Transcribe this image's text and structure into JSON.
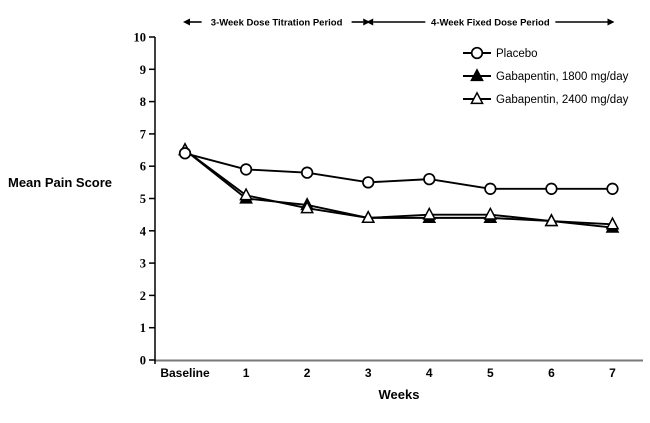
{
  "chart_data": {
    "type": "line",
    "title": "",
    "xlabel": "Weeks",
    "ylabel": "Mean Pain Score",
    "x_categories": [
      "Baseline",
      "1",
      "2",
      "3",
      "4",
      "5",
      "6",
      "7"
    ],
    "ylim": [
      0,
      10
    ],
    "yticks": [
      0,
      1,
      2,
      3,
      4,
      5,
      6,
      7,
      8,
      9,
      10
    ],
    "grid": false,
    "legend_position": "inside-top-right",
    "series": [
      {
        "name": "Placebo",
        "marker": "circle-open",
        "color": "#000000",
        "values": [
          6.4,
          5.9,
          5.8,
          5.5,
          5.6,
          5.3,
          5.3,
          5.3
        ]
      },
      {
        "name": "Gabapentin, 1800 mg/day",
        "marker": "triangle-filled",
        "color": "#000000",
        "values": [
          6.5,
          5.0,
          4.8,
          4.4,
          4.4,
          4.4,
          4.3,
          4.1
        ]
      },
      {
        "name": "Gabapentin, 2400 mg/day",
        "marker": "triangle-open",
        "color": "#000000",
        "values": [
          6.5,
          5.1,
          4.7,
          4.4,
          4.5,
          4.5,
          4.3,
          4.2
        ]
      }
    ],
    "annotations": [
      {
        "label": "3-Week Dose Titration Period",
        "x_from": "Baseline",
        "x_to": "3"
      },
      {
        "label": "4-Week Fixed Dose Period",
        "x_from": "3",
        "x_to": "7"
      }
    ],
    "line_color": "#000000",
    "x_axis_color": "#7a7a7a",
    "y_axis_color": "#000000"
  }
}
